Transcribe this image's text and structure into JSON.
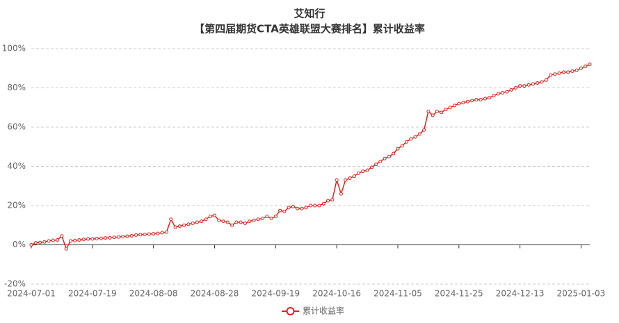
{
  "chart_data": {
    "type": "line",
    "title": "艾知行",
    "subtitle": "【第四届期货CTA英雄联盟大赛排名】累计收益率",
    "categories": [
      "2024-07-01",
      null,
      null,
      null,
      null,
      null,
      null,
      null,
      null,
      null,
      null,
      null,
      null,
      null,
      "2024-07-19",
      null,
      null,
      null,
      null,
      null,
      null,
      null,
      null,
      null,
      null,
      null,
      null,
      null,
      "2024-08-08",
      null,
      null,
      null,
      null,
      null,
      null,
      null,
      null,
      null,
      null,
      null,
      null,
      null,
      "2024-08-28",
      null,
      null,
      null,
      null,
      null,
      null,
      null,
      null,
      null,
      null,
      null,
      null,
      null,
      "2024-09-19",
      null,
      null,
      null,
      null,
      null,
      null,
      null,
      null,
      null,
      null,
      null,
      null,
      null,
      "2024-10-16",
      null,
      null,
      null,
      null,
      null,
      null,
      null,
      null,
      null,
      null,
      null,
      null,
      null,
      "2024-11-05",
      null,
      null,
      null,
      null,
      null,
      null,
      null,
      null,
      null,
      null,
      null,
      null,
      null,
      "2024-11-25",
      null,
      null,
      null,
      null,
      null,
      null,
      null,
      null,
      null,
      null,
      null,
      null,
      null,
      "2024-12-13",
      null,
      null,
      null,
      null,
      null,
      null,
      null,
      null,
      null,
      null,
      null,
      null,
      null,
      "2025-01-03",
      null,
      null
    ],
    "series": [
      {
        "name": "累计收益率",
        "color": "#e0201b",
        "values": [
          0,
          1,
          1.2,
          1.5,
          2,
          2.3,
          2.5,
          4.5,
          -2,
          2,
          2.2,
          2.5,
          2.8,
          3,
          3,
          3.2,
          3.3,
          3.5,
          3.6,
          3.8,
          4,
          4.2,
          4.4,
          4.6,
          5,
          5.2,
          5.3,
          5.5,
          5.6,
          5.8,
          6.2,
          6.5,
          13,
          9,
          9.5,
          10,
          10.5,
          11,
          11.5,
          12,
          13,
          14.5,
          15,
          12.5,
          12,
          11.5,
          10,
          11.5,
          11.5,
          11,
          12,
          12.5,
          13,
          13.5,
          14.5,
          13.5,
          14.5,
          17.5,
          17,
          19,
          19.5,
          18.5,
          18.5,
          19,
          20,
          20,
          20,
          21,
          22.5,
          23,
          33,
          26,
          33,
          34,
          35,
          36.5,
          37.5,
          38,
          39.5,
          41,
          42.5,
          44,
          45,
          46.5,
          49,
          50.5,
          52.5,
          54,
          55,
          56.5,
          58.5,
          68,
          66,
          68,
          67.5,
          69,
          70,
          71,
          72,
          72.5,
          73,
          73.5,
          74,
          74,
          74.5,
          75,
          76,
          77,
          77.5,
          78,
          79,
          80,
          81,
          81,
          81.5,
          82,
          82.5,
          83,
          84,
          86.5,
          87,
          87.5,
          88,
          88,
          88.5,
          89,
          90,
          91,
          92
        ]
      }
    ],
    "ylim": [
      -20,
      100
    ],
    "yticks": [
      {
        "value": -20,
        "label": "-20%"
      },
      {
        "value": 0,
        "label": "0%"
      },
      {
        "value": 20,
        "label": "20%"
      },
      {
        "value": 40,
        "label": "40%"
      },
      {
        "value": 60,
        "label": "60%"
      },
      {
        "value": 80,
        "label": "80%"
      },
      {
        "value": 100,
        "label": "100%"
      }
    ],
    "grid": true
  }
}
